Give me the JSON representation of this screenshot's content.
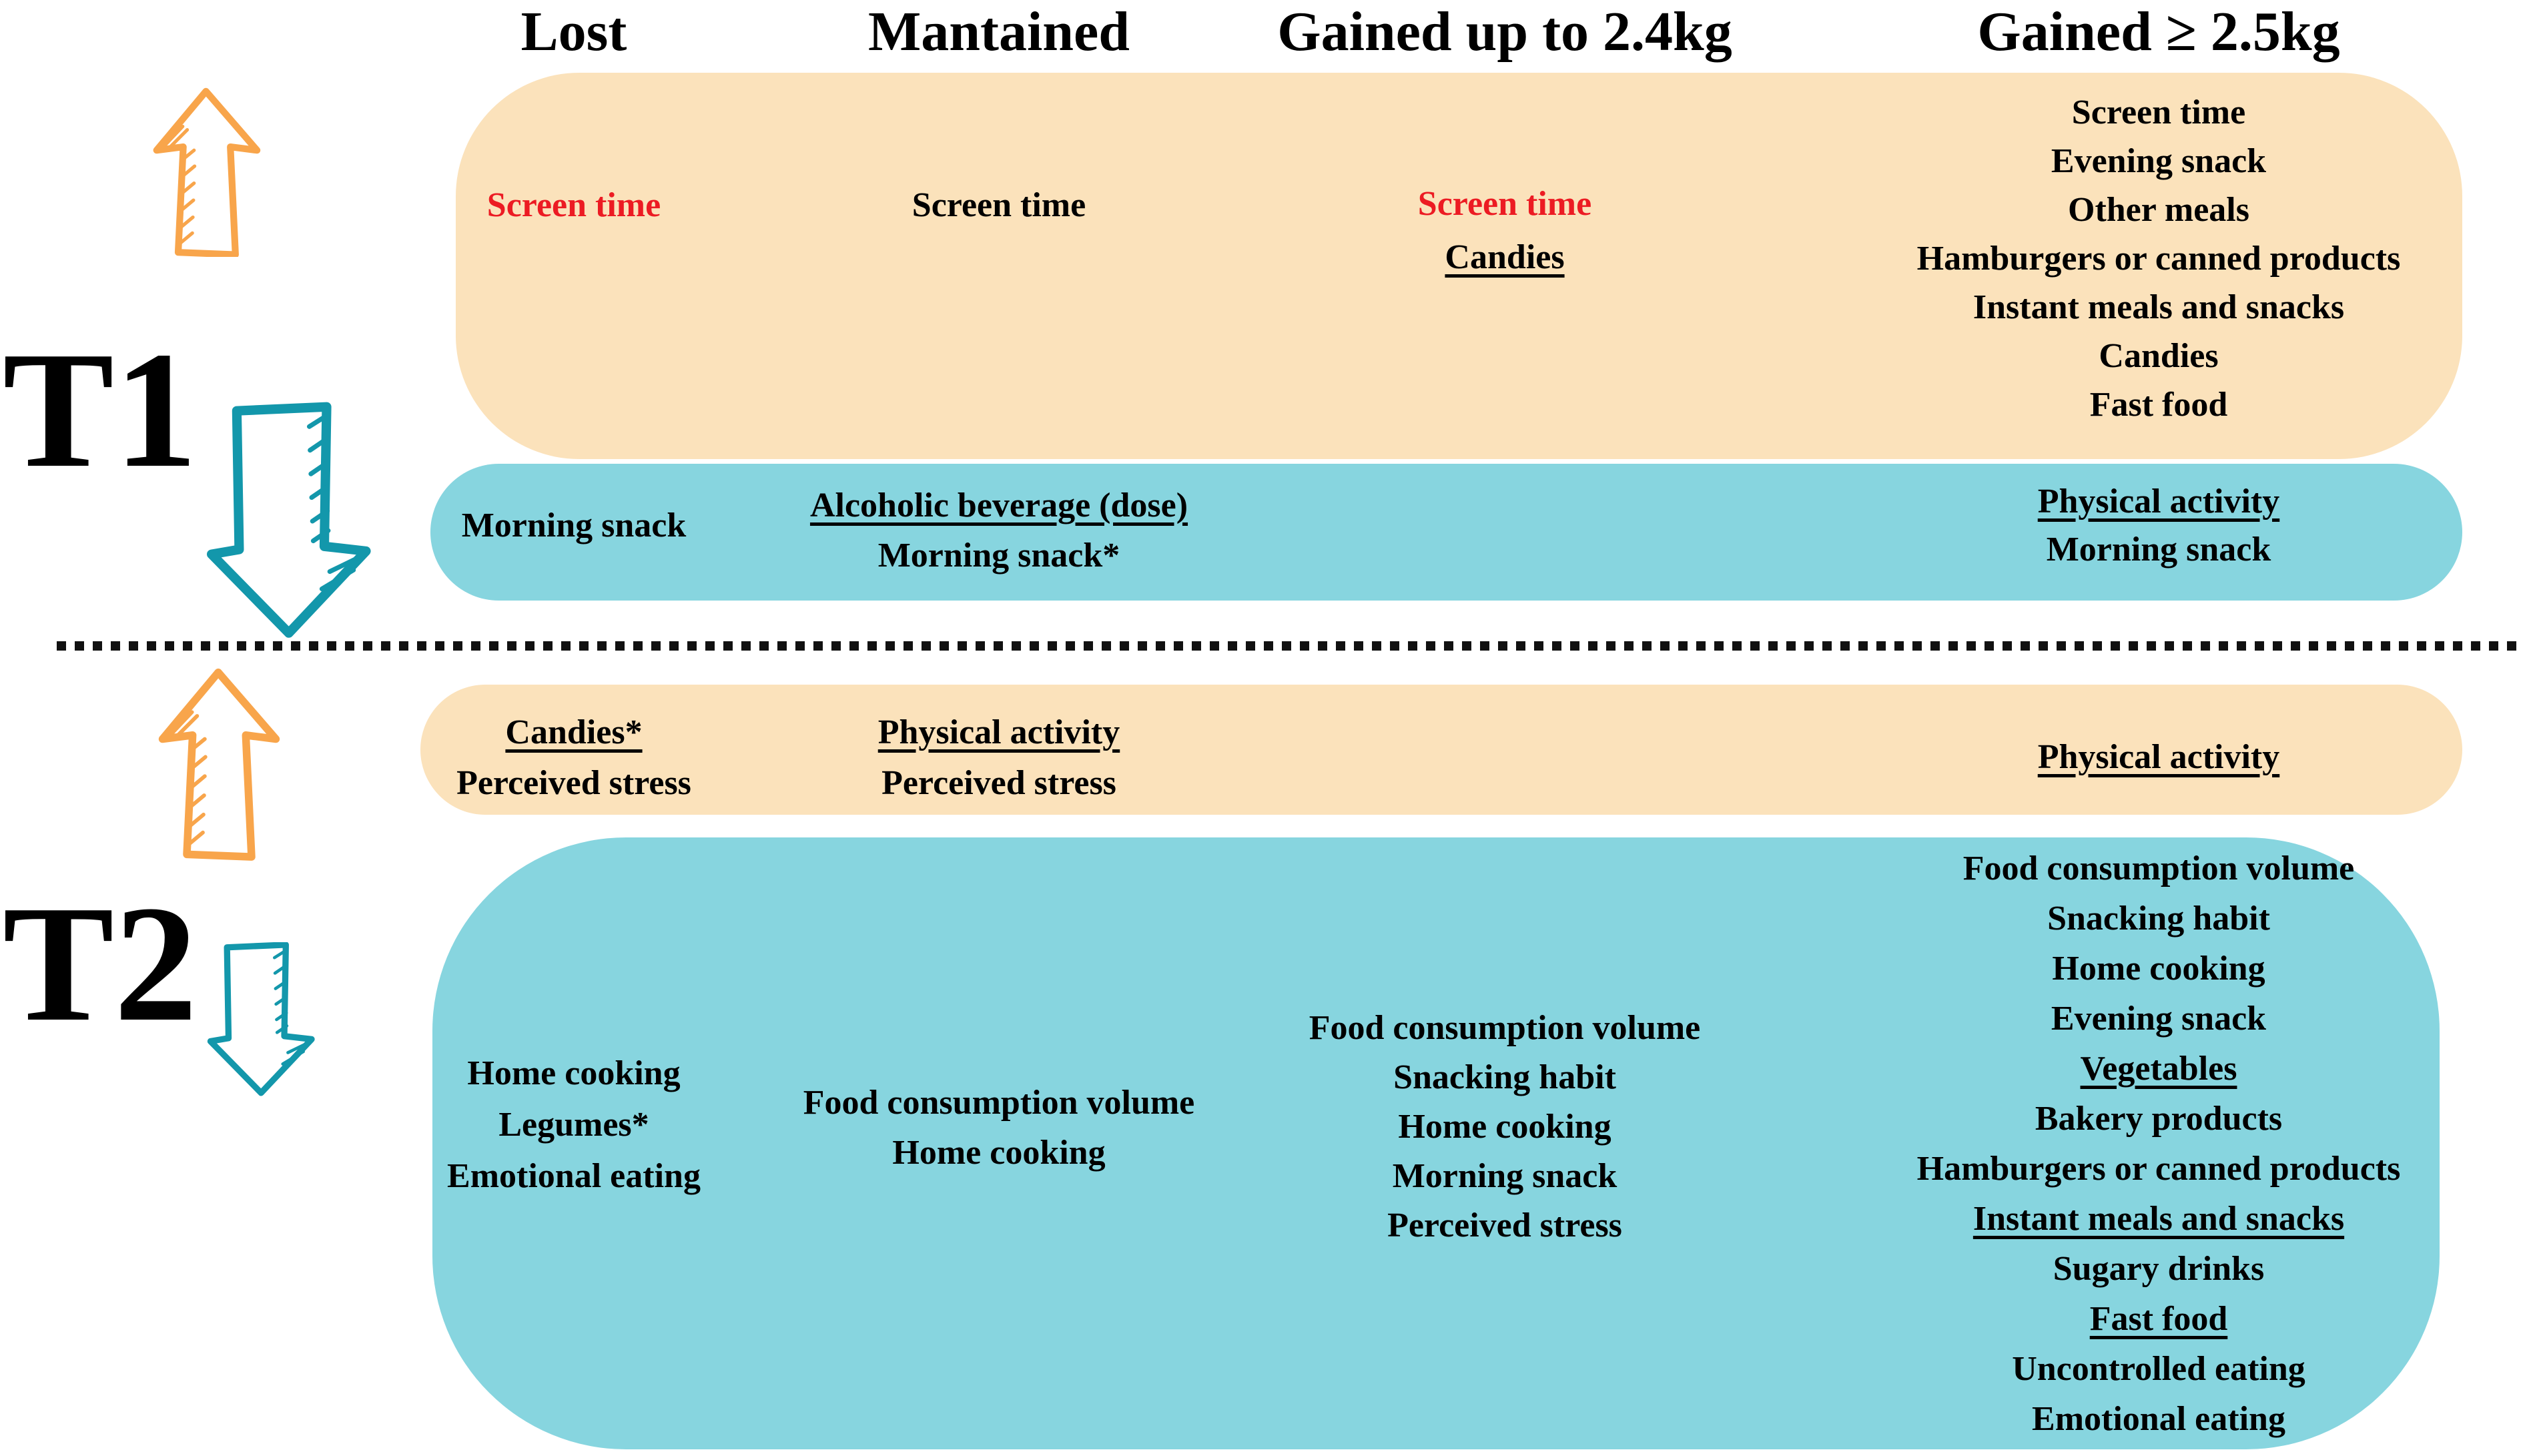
{
  "figure": {
    "column_headers": [
      "Lost",
      "Mantained",
      "Gained up to 2.4kg",
      "Gained ≥ 2.5kg"
    ],
    "time_labels": {
      "t1": "T1",
      "t2": "T2"
    }
  },
  "palette": {
    "band_increase": "#FBE2BB",
    "band_decrease": "#87D5DF",
    "arrow_increase": "#F8A54B",
    "arrow_decrease": "#1397AB",
    "highlight_red": "#EC1B23",
    "text": "#000000"
  },
  "icons": {
    "increase": "up-arrow-icon",
    "decrease": "down-arrow-icon"
  },
  "sections": {
    "t1": {
      "increase": {
        "cols": [
          [
            {
              "text": "Screen time",
              "red": true
            }
          ],
          [
            {
              "text": "Screen time"
            }
          ],
          [
            {
              "text": "Screen time",
              "red": true
            },
            {
              "text": "Candies",
              "u": true
            }
          ],
          [
            {
              "text": "Screen time"
            },
            {
              "text": "Evening snack"
            },
            {
              "text": "Other meals"
            },
            {
              "text": "Hamburgers or canned products"
            },
            {
              "text": "Instant meals and snacks"
            },
            {
              "text": "Candies"
            },
            {
              "text": "Fast food"
            }
          ]
        ]
      },
      "decrease": {
        "cols": [
          [
            {
              "text": "Morning snack"
            }
          ],
          [
            {
              "text": "Alcoholic beverage (dose)",
              "u": true
            },
            {
              "text": "Morning snack*"
            }
          ],
          [],
          [
            {
              "text": "Physical activity",
              "u": true
            },
            {
              "text": "Morning snack"
            }
          ]
        ]
      }
    },
    "t2": {
      "increase": {
        "cols": [
          [
            {
              "text": "Candies*",
              "u": true
            },
            {
              "text": "Perceived stress"
            }
          ],
          [
            {
              "text": "Physical activity",
              "u": true
            },
            {
              "text": "Perceived stress"
            }
          ],
          [],
          [
            {
              "text": "Physical activity",
              "u": true
            }
          ]
        ]
      },
      "decrease": {
        "cols": [
          [
            {
              "text": "Home cooking"
            },
            {
              "text": "Legumes*"
            },
            {
              "text": "Emotional eating"
            }
          ],
          [
            {
              "text": "Food consumption volume"
            },
            {
              "text": "Home cooking"
            }
          ],
          [
            {
              "text": "Food consumption volume"
            },
            {
              "text": "Snacking habit"
            },
            {
              "text": "Home cooking"
            },
            {
              "text": "Morning snack"
            },
            {
              "text": "Perceived stress"
            }
          ],
          [
            {
              "text": "Food consumption volume"
            },
            {
              "text": "Snacking habit"
            },
            {
              "text": "Home cooking"
            },
            {
              "text": "Evening snack"
            },
            {
              "text": "Vegetables",
              "u": true
            },
            {
              "text": "Bakery products"
            },
            {
              "text": "Hamburgers or canned products"
            },
            {
              "text": "Instant meals and snacks",
              "u": true
            },
            {
              "text": "Sugary drinks"
            },
            {
              "text": "Fast food",
              "u": true
            },
            {
              "text": "Uncontrolled eating"
            },
            {
              "text": "Emotional eating"
            }
          ]
        ]
      }
    }
  }
}
